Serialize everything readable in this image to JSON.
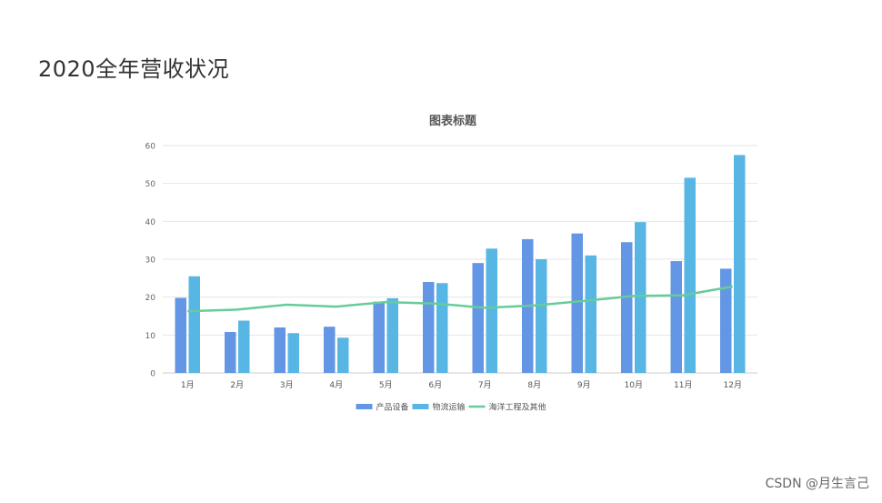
{
  "page": {
    "title": "2020全年营收状况"
  },
  "watermark": "CSDN @月生言己",
  "chart_data": {
    "type": "bar",
    "title": "图表标题",
    "xlabel": "",
    "ylabel": "",
    "ylim": [
      0,
      60
    ],
    "yticks": [
      0,
      10,
      20,
      30,
      40,
      50,
      60
    ],
    "grid": true,
    "legend_position": "bottom",
    "categories": [
      "1月",
      "2月",
      "3月",
      "4月",
      "5月",
      "6月",
      "7月",
      "8月",
      "9月",
      "10月",
      "11月",
      "12月"
    ],
    "series": [
      {
        "name": "产品设备",
        "type": "bar",
        "color": "#6396e4",
        "values": [
          19.8,
          10.8,
          12.0,
          12.2,
          18.8,
          24.0,
          29.0,
          35.3,
          36.8,
          34.5,
          29.5,
          27.5
        ]
      },
      {
        "name": "物流运输",
        "type": "bar",
        "color": "#58b6e4",
        "values": [
          25.5,
          13.8,
          10.5,
          9.3,
          19.7,
          23.7,
          32.8,
          30.0,
          31.0,
          39.8,
          51.5,
          57.5
        ]
      },
      {
        "name": "海洋工程及其他",
        "type": "line",
        "color": "#66cc99",
        "values": [
          16.3,
          16.7,
          18.0,
          17.5,
          18.7,
          18.3,
          17.2,
          17.8,
          19.0,
          20.3,
          20.5,
          22.8
        ]
      }
    ]
  }
}
